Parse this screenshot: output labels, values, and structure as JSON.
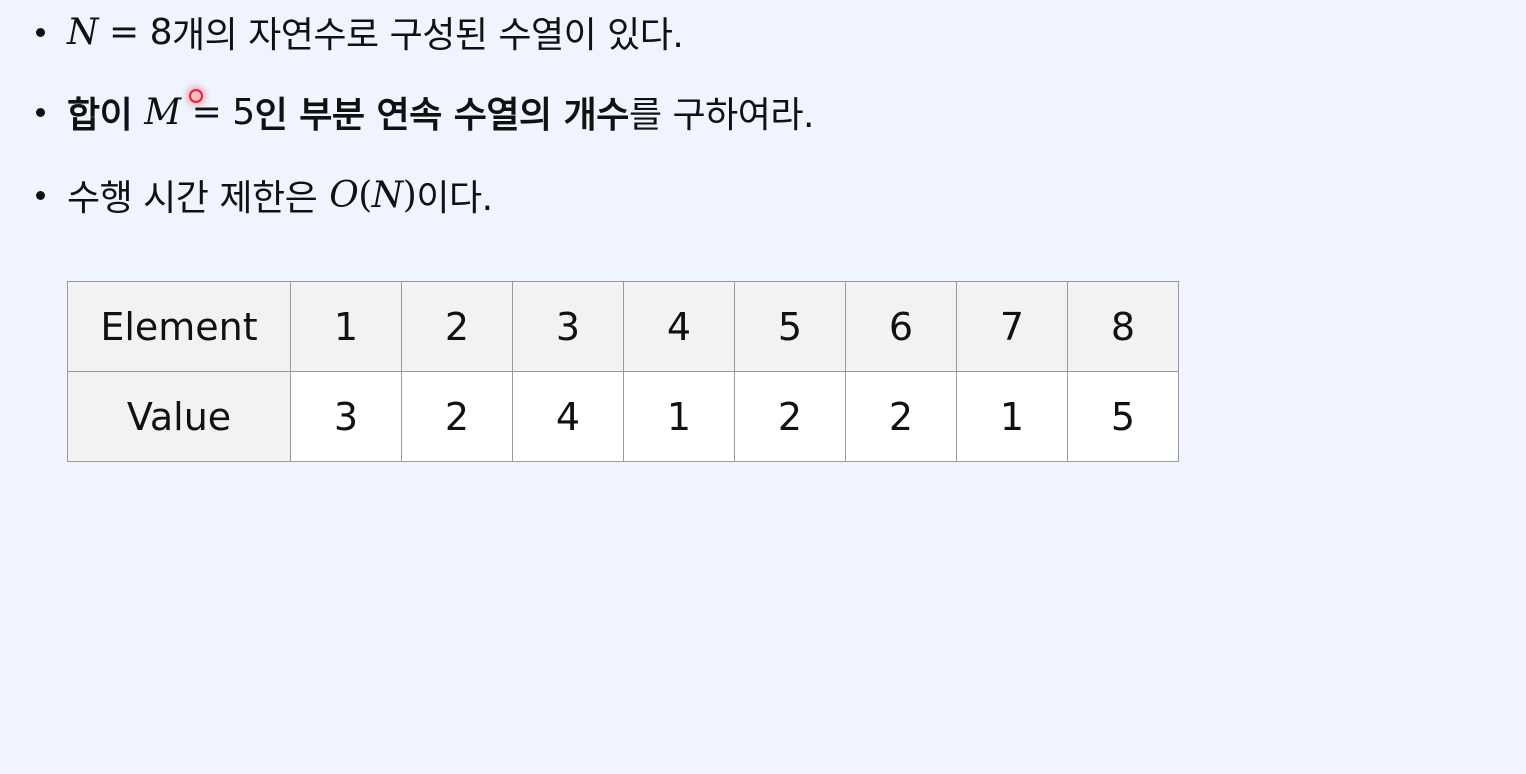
{
  "bullets": {
    "line1": {
      "var_n": "N",
      "eq": " = ",
      "num": "8",
      "text": "개의 자연수로 구성된 수열이 있다."
    },
    "line2": {
      "bold_prefix": "합이",
      "var_m": "M",
      "eq": " = ",
      "num": "5",
      "bold_text": "인 부분 연속 수열의 개수",
      "suffix": "를 구하여라."
    },
    "line3": {
      "text": "수행 시간 제한은",
      "bigo": "O",
      "paren_open": "(",
      "var_n": "N",
      "paren_close": ")",
      "suffix": "이다."
    }
  },
  "table": {
    "row_headers": [
      "Element",
      "Value"
    ],
    "elements": [
      "1",
      "2",
      "3",
      "4",
      "5",
      "6",
      "7",
      "8"
    ],
    "values": [
      "3",
      "2",
      "4",
      "1",
      "2",
      "2",
      "1",
      "5"
    ]
  },
  "colors": {
    "background": "#eff4fe",
    "header_cell": "#f2f2f2",
    "value_cell": "#ffffff",
    "border": "#9a9a9a",
    "cursor": "#e0243a"
  }
}
